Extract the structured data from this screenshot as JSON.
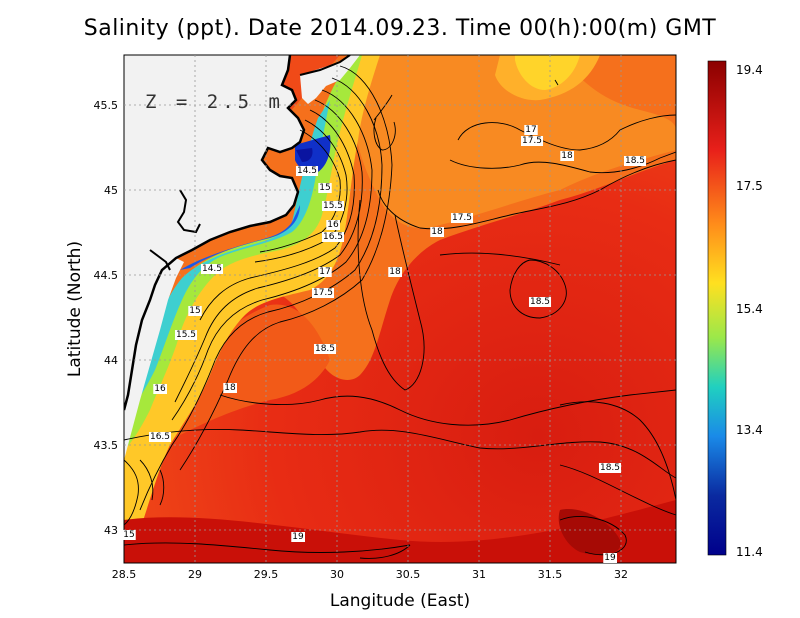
{
  "title": "Salinity (ppt). Date 2014.09.23. Time 00(h):00(m) GMT",
  "depth_label": "Z = 2.5 m",
  "xlabel": "Langitude (East)",
  "ylabel": "Latitude (North)",
  "x_ticks": [
    "28.5",
    "29",
    "29.5",
    "30",
    "30.5",
    "31",
    "31.5",
    "32"
  ],
  "y_ticks": [
    "43",
    "43.5",
    "44",
    "44.5",
    "45",
    "45.5"
  ],
  "colorbar": {
    "ticks": [
      "19.4",
      "17.5",
      "15.4",
      "13.4",
      "11.4"
    ],
    "colors": [
      "#8b0000",
      "#e8201a",
      "#ff8c1a",
      "#ffe020",
      "#9be84a",
      "#20d0c0",
      "#1a8ae8",
      "#0a2aa0",
      "#00008b"
    ]
  },
  "contour_labels": [
    {
      "text": "14.5"
    },
    {
      "text": "15"
    },
    {
      "text": "15.5"
    },
    {
      "text": "16"
    },
    {
      "text": "16.5"
    },
    {
      "text": "17"
    },
    {
      "text": "17.5"
    },
    {
      "text": "17"
    },
    {
      "text": "17.5"
    },
    {
      "text": "18"
    },
    {
      "text": "18.5"
    },
    {
      "text": "17.5"
    },
    {
      "text": "18"
    },
    {
      "text": "18"
    },
    {
      "text": "18.5"
    },
    {
      "text": "14.5"
    },
    {
      "text": "15"
    },
    {
      "text": "15.5"
    },
    {
      "text": "18.5"
    },
    {
      "text": "18"
    },
    {
      "text": "16"
    },
    {
      "text": "16.5"
    },
    {
      "text": "18.5"
    },
    {
      "text": "19"
    },
    {
      "text": "19"
    },
    {
      "text": "15"
    }
  ]
}
